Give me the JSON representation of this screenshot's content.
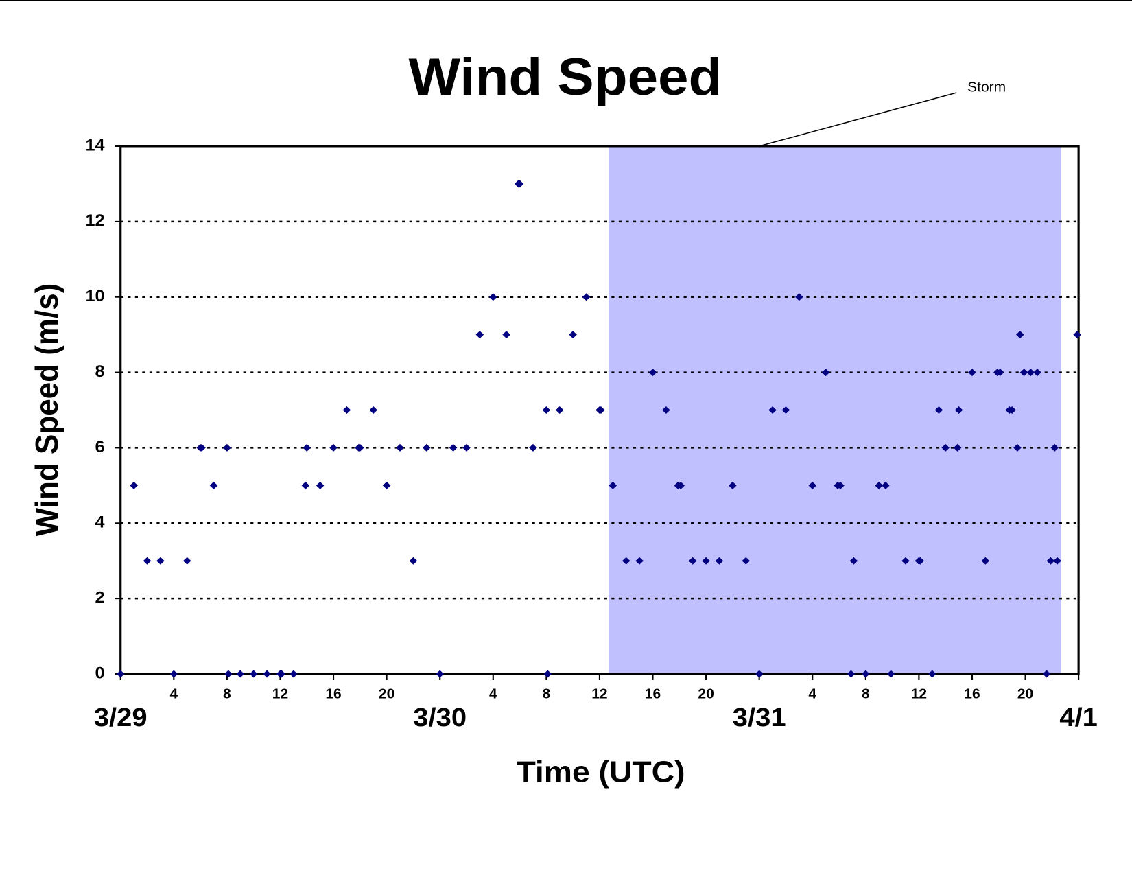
{
  "chart_data": {
    "type": "scatter",
    "title": "Wind Speed",
    "xlabel": "Time (UTC)",
    "ylabel": "Wind Speed (m/s)",
    "xlim": [
      0,
      72
    ],
    "ylim": [
      0,
      14
    ],
    "yticks": [
      0,
      2,
      4,
      6,
      8,
      10,
      12,
      14
    ],
    "xticks": [
      4,
      8,
      12,
      16,
      20,
      {
        "value": 28,
        "label": "4"
      },
      {
        "value": 32,
        "label": "8"
      },
      {
        "value": 36,
        "label": "12"
      },
      {
        "value": 40,
        "label": "16"
      },
      {
        "value": 44,
        "label": "20"
      },
      {
        "value": 52,
        "label": "4"
      },
      {
        "value": 56,
        "label": "8"
      },
      {
        "value": 60,
        "label": "12"
      },
      {
        "value": 64,
        "label": "16"
      },
      {
        "value": 68,
        "label": "20"
      }
    ],
    "day_ticks": [
      {
        "value": 0,
        "label": "3/29"
      },
      {
        "value": 24,
        "label": "3/30"
      },
      {
        "value": 48,
        "label": "3/31"
      },
      {
        "value": 72,
        "label": "4/1"
      }
    ],
    "grid": true,
    "storm": {
      "label": "Storm",
      "xlim": [
        36.7,
        70.7
      ],
      "color": "#c0c0ff"
    },
    "series": [
      {
        "color": "#000080",
        "x": [
          0,
          1,
          2,
          3,
          4,
          5,
          6,
          6.1,
          7,
          8,
          8.1,
          9,
          10,
          11,
          12,
          12.1,
          13,
          13.9,
          14,
          15,
          16,
          17,
          17.9,
          18,
          19,
          20,
          21,
          22,
          23,
          24,
          25,
          26,
          27,
          28,
          29,
          29.9,
          30,
          31,
          32,
          32.1,
          33,
          34,
          35,
          36,
          36.1,
          37,
          38,
          39,
          40,
          41,
          41.9,
          42.1,
          43,
          44,
          45,
          46,
          47,
          48,
          49,
          50,
          51,
          52,
          53,
          53.9,
          54.1,
          54.9,
          55.1,
          56,
          57,
          57.5,
          57.9,
          59,
          60,
          60.1,
          61,
          61.5,
          62,
          62.9,
          63,
          64,
          65,
          65.9,
          66.1,
          66.8,
          67,
          67.4,
          67.6,
          67.9,
          68.4,
          68.9,
          69.6,
          69.9,
          70.2,
          70.4,
          71.9
        ],
        "values": [
          0,
          5,
          3,
          3,
          0,
          3,
          6,
          6,
          5,
          6,
          0,
          0,
          0,
          0,
          0,
          0,
          0,
          5,
          6,
          5,
          6,
          7,
          6,
          6,
          7,
          5,
          6,
          3,
          6,
          0,
          6,
          6,
          9,
          10,
          9,
          13,
          13,
          6,
          7,
          0,
          7,
          9,
          10,
          7,
          7,
          5,
          3,
          3,
          8,
          7,
          5,
          5,
          3,
          3,
          3,
          5,
          3,
          0,
          7,
          7,
          10,
          5,
          8,
          5,
          5,
          0,
          3,
          0,
          5,
          5,
          0,
          3,
          3,
          3,
          0,
          7,
          6,
          6,
          7,
          8,
          3,
          8,
          8,
          7,
          7,
          6,
          9,
          8,
          8,
          8,
          0,
          3,
          6,
          3,
          9
        ]
      }
    ]
  }
}
